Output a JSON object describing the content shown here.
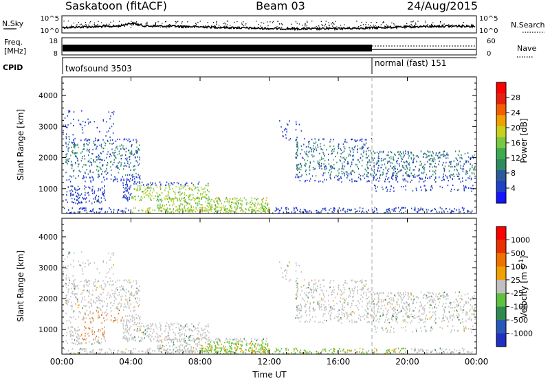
{
  "header": {
    "station": "Saskatoon (fitACF)",
    "beam": "Beam 03",
    "date": "24/Aug/2015"
  },
  "noise_panel": {
    "left_label": "N.Sky",
    "right_label": "N.Search",
    "ticks_left": [
      "10^5",
      "10^0"
    ],
    "ticks_right": [
      "10^5",
      "10^0"
    ]
  },
  "freq_panel": {
    "label_line1": "Freq.",
    "label_line2": "[MHz]",
    "right_label": "Nave",
    "ticks_left": [
      "18",
      "8"
    ],
    "ticks_right": [
      "60",
      "0"
    ]
  },
  "cpid_panel": {
    "label": "CPID",
    "segments": [
      {
        "name": "twofsound 3503",
        "start_hour": 0
      },
      {
        "name": "normal (fast) 151",
        "start_hour": 18
      }
    ]
  },
  "chart_data": [
    {
      "type": "heatmap",
      "ylabel": "Slant Range [km]",
      "xlabel": "Time UT",
      "xlim": [
        0,
        24
      ],
      "ylim": [
        200,
        4600
      ],
      "x_ticks": [
        "00:00",
        "04:00",
        "08:00",
        "12:00",
        "16:00",
        "20:00",
        "00:00"
      ],
      "y_ticks": [
        1000,
        2000,
        3000,
        4000
      ],
      "colorbar": {
        "label": "Power [dB]",
        "ticks": [
          "28",
          "24",
          "20",
          "16",
          "12",
          "8",
          "4"
        ],
        "colors": [
          "#1414ff",
          "#2040c8",
          "#2a5a9a",
          "#2e8a60",
          "#3caa50",
          "#78c840",
          "#c8d020",
          "#f0a000",
          "#f06000",
          "#e82010",
          "#ff0000"
        ]
      }
    },
    {
      "type": "heatmap",
      "ylabel": "Slant Range [km]",
      "xlabel": "Time UT",
      "xlim": [
        0,
        24
      ],
      "ylim": [
        200,
        4600
      ],
      "x_ticks": [
        "00:00",
        "04:00",
        "08:00",
        "12:00",
        "16:00",
        "20:00",
        "00:00"
      ],
      "y_ticks": [
        1000,
        2000,
        3000,
        4000
      ],
      "colorbar": {
        "label": "Velocity [m s^-1]",
        "ticks": [
          "1000",
          "500",
          "100",
          "25",
          "-25",
          "-100",
          "-500",
          "-1000"
        ],
        "colors": [
          "#2030c0",
          "#2858b8",
          "#2e8a50",
          "#60c040",
          "#c0c0c0",
          "#f0a000",
          "#f07000",
          "#e83000",
          "#ff0000"
        ]
      }
    }
  ],
  "x_axis": {
    "label": "Time UT"
  }
}
